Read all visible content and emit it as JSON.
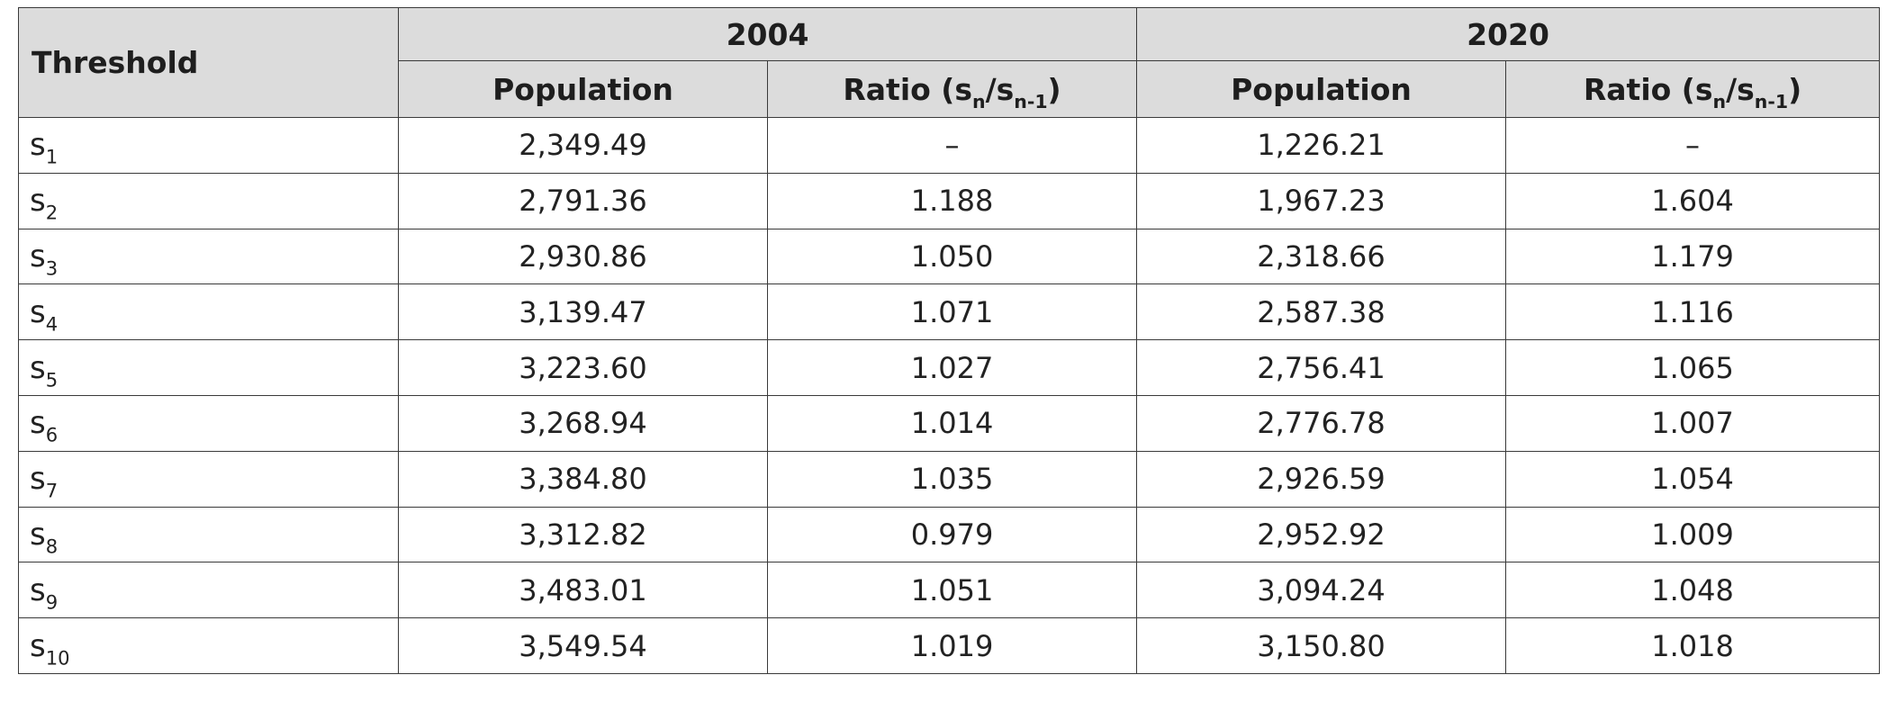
{
  "table": {
    "header": {
      "threshold": "Threshold",
      "years": [
        "2004",
        "2020"
      ],
      "population": "Population",
      "ratio_prefix": "Ratio (s",
      "ratio_sub_n": "n",
      "ratio_mid": "/s",
      "ratio_sub_n1": "n-1",
      "ratio_suffix": ")"
    },
    "rows": [
      {
        "sym": "s",
        "idx": "1",
        "p2004": "2,349.49",
        "r2004": "–",
        "p2020": "1,226.21",
        "r2020": "–"
      },
      {
        "sym": "s",
        "idx": "2",
        "p2004": "2,791.36",
        "r2004": "1.188",
        "p2020": "1,967.23",
        "r2020": "1.604"
      },
      {
        "sym": "s",
        "idx": "3",
        "p2004": "2,930.86",
        "r2004": "1.050",
        "p2020": "2,318.66",
        "r2020": "1.179"
      },
      {
        "sym": "s",
        "idx": "4",
        "p2004": "3,139.47",
        "r2004": "1.071",
        "p2020": "2,587.38",
        "r2020": "1.116"
      },
      {
        "sym": "s",
        "idx": "5",
        "p2004": "3,223.60",
        "r2004": "1.027",
        "p2020": "2,756.41",
        "r2020": "1.065"
      },
      {
        "sym": "s",
        "idx": "6",
        "p2004": "3,268.94",
        "r2004": "1.014",
        "p2020": "2,776.78",
        "r2020": "1.007"
      },
      {
        "sym": "s",
        "idx": "7",
        "p2004": "3,384.80",
        "r2004": "1.035",
        "p2020": "2,926.59",
        "r2020": "1.054"
      },
      {
        "sym": "s",
        "idx": "8",
        "p2004": "3,312.82",
        "r2004": "0.979",
        "p2020": "2,952.92",
        "r2020": "1.009"
      },
      {
        "sym": "s",
        "idx": "9",
        "p2004": "3,483.01",
        "r2004": "1.051",
        "p2020": "3,094.24",
        "r2020": "1.048"
      },
      {
        "sym": "s",
        "idx": "10",
        "p2004": "3,549.54",
        "r2004": "1.019",
        "p2020": "3,150.80",
        "r2020": "1.018"
      }
    ]
  },
  "colors": {
    "header_bg": "#dcdcdc",
    "border": "#3a3a3a",
    "text": "#222222"
  }
}
